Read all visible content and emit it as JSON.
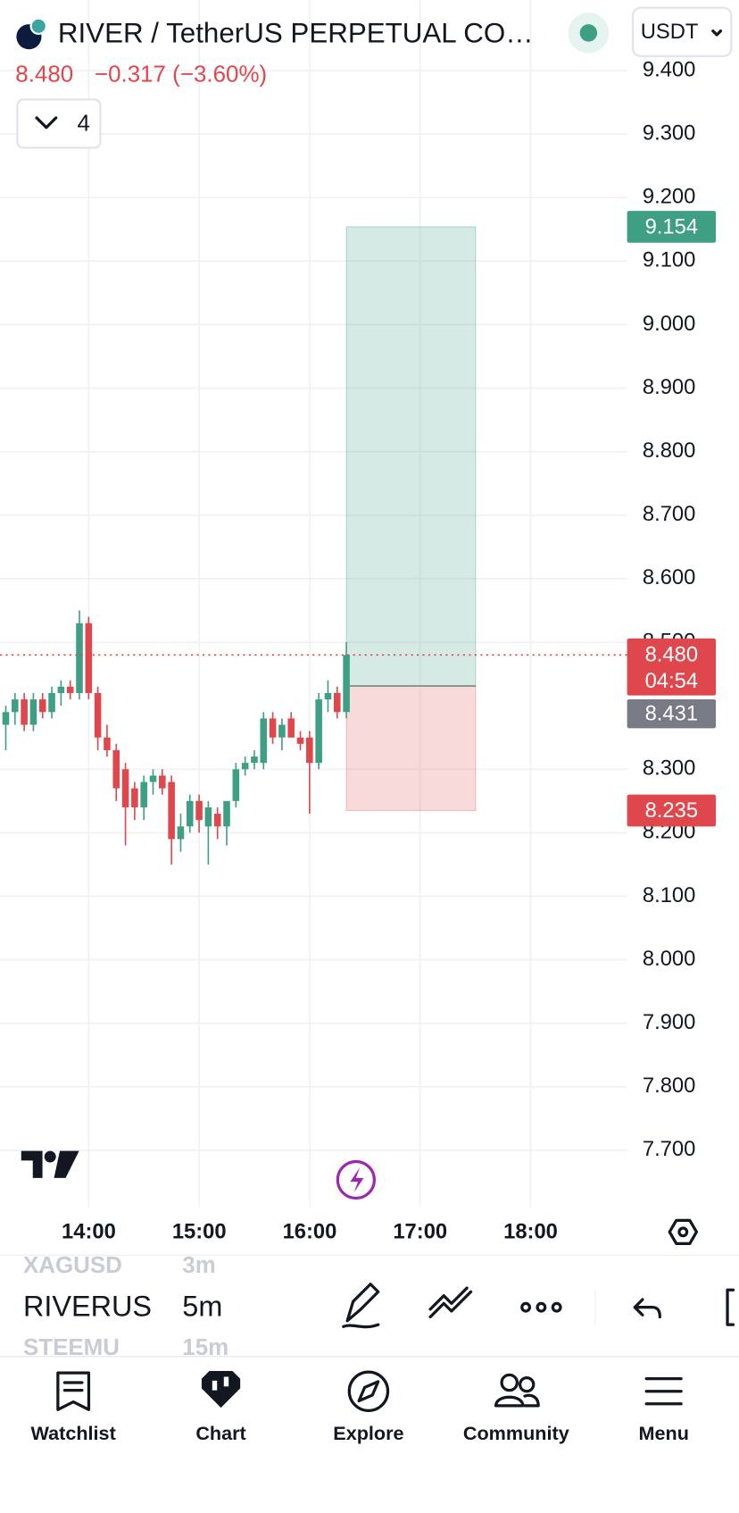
{
  "header": {
    "symbol": "RIVER / TetherUS PERPETUAL CO…",
    "currency": "USDT",
    "last_price": "8.480",
    "change": "−0.317 (−3.60%)",
    "indicators": "4"
  },
  "chart_data": {
    "type": "candlestick",
    "ylim": [
      7.611,
      9.511
    ],
    "yticks": [
      {
        "value": 9.4,
        "label": "9.400"
      },
      {
        "value": 9.3,
        "label": "9.300"
      },
      {
        "value": 9.2,
        "label": "9.200"
      },
      {
        "value": 9.1,
        "label": "9.100"
      },
      {
        "value": 9.0,
        "label": "9.000"
      },
      {
        "value": 8.9,
        "label": "8.900"
      },
      {
        "value": 8.8,
        "label": "8.800"
      },
      {
        "value": 8.7,
        "label": "8.700"
      },
      {
        "value": 8.6,
        "label": "8.600"
      },
      {
        "value": 8.5,
        "label": "8.500"
      },
      {
        "value": 8.3,
        "label": "8.300"
      },
      {
        "value": 8.2,
        "label": "8.200"
      },
      {
        "value": 8.1,
        "label": "8.100"
      },
      {
        "value": 8.0,
        "label": "8.000"
      },
      {
        "value": 7.9,
        "label": "7.900"
      },
      {
        "value": 7.8,
        "label": "7.800"
      },
      {
        "value": 7.7,
        "label": "7.700"
      }
    ],
    "xticks": [
      "14:00",
      "15:00",
      "16:00",
      "17:00",
      "18:00"
    ],
    "up_color": "#3f9f84",
    "down_color": "#e0474c",
    "candles": [
      {
        "o": 8.37,
        "h": 8.4,
        "l": 8.33,
        "c": 8.39
      },
      {
        "o": 8.39,
        "h": 8.42,
        "l": 8.37,
        "c": 8.41
      },
      {
        "o": 8.41,
        "h": 8.42,
        "l": 8.36,
        "c": 8.37
      },
      {
        "o": 8.37,
        "h": 8.42,
        "l": 8.36,
        "c": 8.41
      },
      {
        "o": 8.41,
        "h": 8.42,
        "l": 8.38,
        "c": 8.39
      },
      {
        "o": 8.39,
        "h": 8.43,
        "l": 8.38,
        "c": 8.42
      },
      {
        "o": 8.42,
        "h": 8.44,
        "l": 8.4,
        "c": 8.43
      },
      {
        "o": 8.43,
        "h": 8.44,
        "l": 8.41,
        "c": 8.42
      },
      {
        "o": 8.42,
        "h": 8.55,
        "l": 8.41,
        "c": 8.53
      },
      {
        "o": 8.53,
        "h": 8.54,
        "l": 8.41,
        "c": 8.42
      },
      {
        "o": 8.42,
        "h": 8.43,
        "l": 8.33,
        "c": 8.35
      },
      {
        "o": 8.35,
        "h": 8.37,
        "l": 8.32,
        "c": 8.33
      },
      {
        "o": 8.33,
        "h": 8.34,
        "l": 8.25,
        "c": 8.27
      },
      {
        "o": 8.3,
        "h": 8.31,
        "l": 8.18,
        "c": 8.24
      },
      {
        "o": 8.27,
        "h": 8.28,
        "l": 8.22,
        "c": 8.24
      },
      {
        "o": 8.24,
        "h": 8.29,
        "l": 8.22,
        "c": 8.28
      },
      {
        "o": 8.28,
        "h": 8.3,
        "l": 8.26,
        "c": 8.29
      },
      {
        "o": 8.29,
        "h": 8.3,
        "l": 8.26,
        "c": 8.27
      },
      {
        "o": 8.28,
        "h": 8.29,
        "l": 8.15,
        "c": 8.19
      },
      {
        "o": 8.19,
        "h": 8.23,
        "l": 8.17,
        "c": 8.21
      },
      {
        "o": 8.21,
        "h": 8.26,
        "l": 8.2,
        "c": 8.25
      },
      {
        "o": 8.25,
        "h": 8.26,
        "l": 8.2,
        "c": 8.22
      },
      {
        "o": 8.21,
        "h": 8.25,
        "l": 8.15,
        "c": 8.24
      },
      {
        "o": 8.23,
        "h": 8.24,
        "l": 8.19,
        "c": 8.21
      },
      {
        "o": 8.21,
        "h": 8.25,
        "l": 8.18,
        "c": 8.25
      },
      {
        "o": 8.25,
        "h": 8.31,
        "l": 8.24,
        "c": 8.3
      },
      {
        "o": 8.3,
        "h": 8.32,
        "l": 8.29,
        "c": 8.31
      },
      {
        "o": 8.31,
        "h": 8.33,
        "l": 8.3,
        "c": 8.32
      },
      {
        "o": 8.31,
        "h": 8.39,
        "l": 8.3,
        "c": 8.38
      },
      {
        "o": 8.38,
        "h": 8.39,
        "l": 8.34,
        "c": 8.35
      },
      {
        "o": 8.35,
        "h": 8.38,
        "l": 8.33,
        "c": 8.37
      },
      {
        "o": 8.38,
        "h": 8.39,
        "l": 8.35,
        "c": 8.35
      },
      {
        "o": 8.35,
        "h": 8.36,
        "l": 8.33,
        "c": 8.34
      },
      {
        "o": 8.35,
        "h": 8.36,
        "l": 8.23,
        "c": 8.31
      },
      {
        "o": 8.31,
        "h": 8.42,
        "l": 8.3,
        "c": 8.41
      },
      {
        "o": 8.41,
        "h": 8.44,
        "l": 8.39,
        "c": 8.42
      },
      {
        "o": 8.42,
        "h": 8.43,
        "l": 8.38,
        "c": 8.39
      },
      {
        "o": 8.39,
        "h": 8.5,
        "l": 8.38,
        "c": 8.48
      }
    ],
    "last": {
      "value": 8.48,
      "label": "8.480"
    },
    "countdown": "04:54",
    "position": {
      "target": {
        "value": 9.154,
        "label": "9.154"
      },
      "entry": {
        "value": 8.431,
        "label": "8.431"
      },
      "stop": {
        "value": 8.235,
        "label": "8.235"
      }
    }
  },
  "toolbar": {
    "symbols": [
      "XAGUSD",
      "RIVERUS",
      "STEEMU"
    ],
    "intervals": [
      "3m",
      "5m",
      "15m"
    ]
  },
  "nav": [
    "Watchlist",
    "Chart",
    "Explore",
    "Community",
    "Menu"
  ]
}
